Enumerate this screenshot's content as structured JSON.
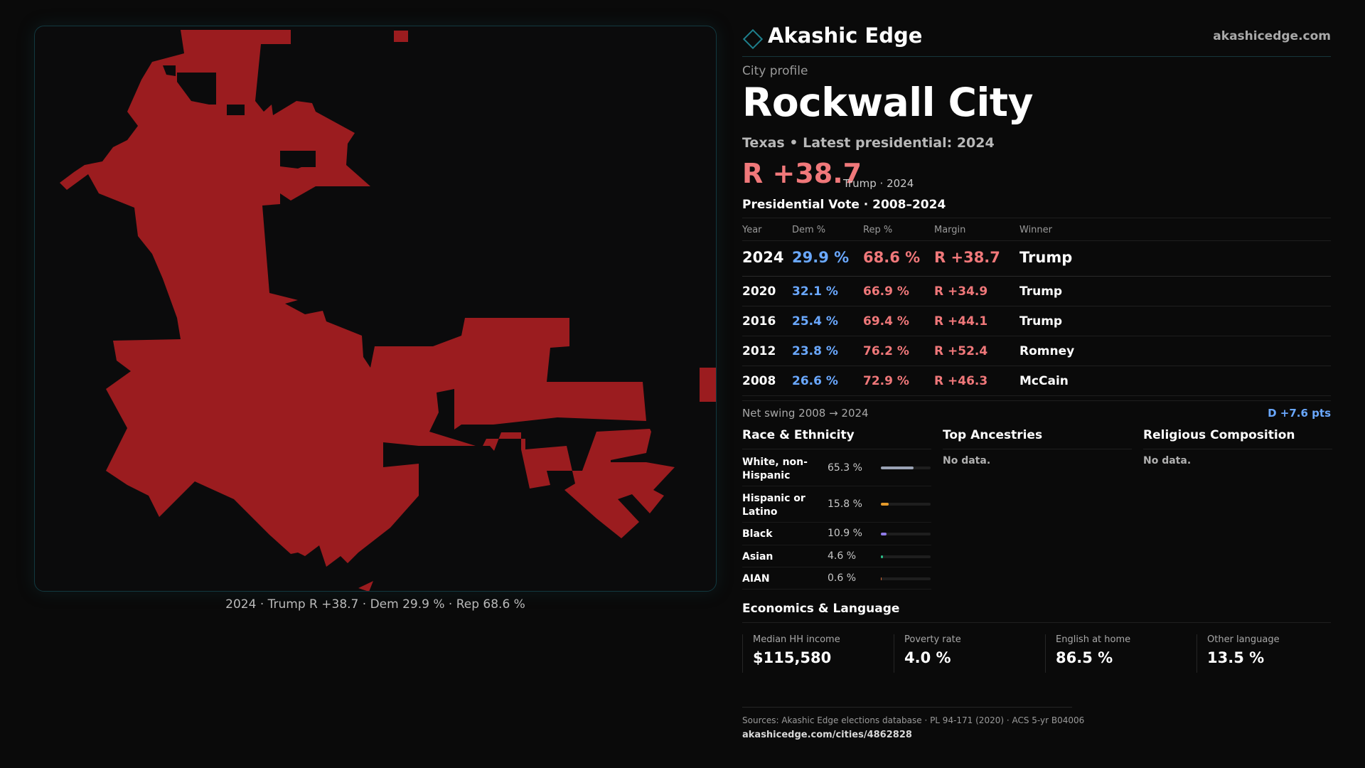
{
  "brand": {
    "name": "Akashic Edge",
    "site": "akashicedge.com",
    "accent": "#1e7f8c"
  },
  "profile": {
    "kicker": "City profile",
    "city": "Rockwall City",
    "subtitle": "Texas • Latest presidential: 2024",
    "margin": "R +38.7",
    "margin_note": "Trump · 2024"
  },
  "map": {
    "caption": "2024 · Trump R +38.7 · Dem 29.9 % · Rep 68.6 %",
    "fill_color": "#9b1c1f"
  },
  "vote": {
    "title": "Presidential Vote · 2008–2024",
    "headers": {
      "year": "Year",
      "dem": "Dem %",
      "rep": "Rep %",
      "margin": "Margin",
      "winner": "Winner"
    },
    "rows": [
      {
        "year": "2024",
        "dem": "29.9 %",
        "rep": "68.6 %",
        "margin": "R +38.7",
        "winner": "Trump"
      },
      {
        "year": "2020",
        "dem": "32.1 %",
        "rep": "66.9 %",
        "margin": "R +34.9",
        "winner": "Trump"
      },
      {
        "year": "2016",
        "dem": "25.4 %",
        "rep": "69.4 %",
        "margin": "R +44.1",
        "winner": "Trump"
      },
      {
        "year": "2012",
        "dem": "23.8 %",
        "rep": "76.2 %",
        "margin": "R +52.4",
        "winner": "Romney"
      },
      {
        "year": "2008",
        "dem": "26.6 %",
        "rep": "72.9 %",
        "margin": "R +46.3",
        "winner": "McCain"
      }
    ],
    "swing_label": "Net swing 2008 → 2024",
    "swing_value": "D +7.6 pts"
  },
  "race": {
    "title": "Race & Ethnicity",
    "rows": [
      {
        "label": "White, non-Hispanic",
        "value": "65.3 %",
        "pct": 65.3,
        "color": "#9aa3b5"
      },
      {
        "label": "Hispanic or Latino",
        "value": "15.8 %",
        "pct": 15.8,
        "color": "#e59a2b"
      },
      {
        "label": "Black",
        "value": "10.9 %",
        "pct": 10.9,
        "color": "#8f7be8"
      },
      {
        "label": "Asian",
        "value": "4.6 %",
        "pct": 4.6,
        "color": "#2bbf8a"
      },
      {
        "label": "AIAN",
        "value": "0.6 %",
        "pct": 0.6,
        "color": "#d06a3a"
      }
    ]
  },
  "ancestry": {
    "title": "Top Ancestries",
    "empty": "No data."
  },
  "religion": {
    "title": "Religious Composition",
    "empty": "No data."
  },
  "economics": {
    "title": "Economics & Language",
    "cells": [
      {
        "label": "Median HH income",
        "value": "$115,580"
      },
      {
        "label": "Poverty rate",
        "value": "4.0 %"
      },
      {
        "label": "English at home",
        "value": "86.5 %"
      },
      {
        "label": "Other language",
        "value": "13.5 %"
      }
    ]
  },
  "footer": {
    "sources": "Sources: Akashic Edge elections database · PL 94-171 (2020) · ACS 5-yr B04006",
    "url": "akashicedge.com/cities/4862828"
  }
}
